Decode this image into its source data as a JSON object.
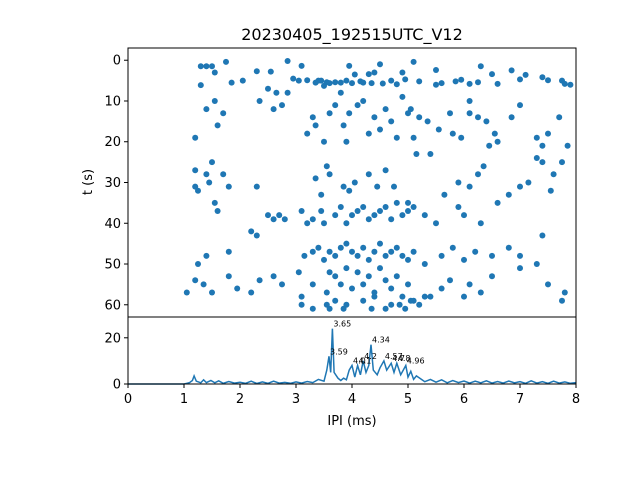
{
  "chart_data": [
    {
      "type": "scatter",
      "title": "20230405_192515UTC_V12",
      "xlabel": "",
      "ylabel": "t (s)",
      "xlim": [
        0,
        8
      ],
      "ylim": [
        63,
        -3
      ],
      "y_inverted": true,
      "yticks": [
        0,
        10,
        20,
        30,
        40,
        50,
        60
      ],
      "color": "#1f77b4",
      "points": [
        [
          1.3,
          1.5
        ],
        [
          1.4,
          1.5
        ],
        [
          1.5,
          1.5
        ],
        [
          1.55,
          3
        ],
        [
          1.75,
          0.4
        ],
        [
          1.85,
          5.5
        ],
        [
          1.3,
          6.1
        ],
        [
          2.05,
          5.0
        ],
        [
          2.3,
          2.7
        ],
        [
          2.55,
          2.8
        ],
        [
          2.85,
          0.2
        ],
        [
          2.95,
          4.5
        ],
        [
          3.05,
          5.0
        ],
        [
          3.1,
          1.4
        ],
        [
          3.2,
          4.9
        ],
        [
          3.35,
          5.5
        ],
        [
          3.4,
          5.0
        ],
        [
          3.45,
          5.0
        ],
        [
          3.5,
          6.3
        ],
        [
          3.55,
          5.4
        ],
        [
          3.6,
          5.6
        ],
        [
          3.7,
          5.4
        ],
        [
          3.8,
          5.5
        ],
        [
          3.9,
          5.0
        ],
        [
          3.95,
          1.4
        ],
        [
          4.0,
          5.6
        ],
        [
          4.05,
          3.5
        ],
        [
          4.15,
          5.2
        ],
        [
          4.2,
          5.5
        ],
        [
          4.3,
          3.4
        ],
        [
          4.35,
          5.6
        ],
        [
          4.4,
          3.0
        ],
        [
          4.5,
          1.0
        ],
        [
          4.55,
          5.7
        ],
        [
          4.7,
          5.0
        ],
        [
          4.8,
          5.9
        ],
        [
          4.9,
          3.0
        ],
        [
          4.95,
          4.7
        ],
        [
          5.1,
          0.4
        ],
        [
          5.2,
          5.2
        ],
        [
          5.5,
          2.4
        ],
        [
          5.5,
          6.0
        ],
        [
          5.6,
          5.6
        ],
        [
          5.85,
          5.2
        ],
        [
          5.95,
          4.8
        ],
        [
          6.1,
          5.8
        ],
        [
          6.25,
          5.4
        ],
        [
          6.3,
          1.5
        ],
        [
          6.5,
          3.4
        ],
        [
          6.6,
          5.8
        ],
        [
          6.85,
          2.5
        ],
        [
          7.0,
          4.7
        ],
        [
          7.1,
          3.6
        ],
        [
          7.4,
          4.2
        ],
        [
          7.5,
          4.9
        ],
        [
          7.75,
          5.0
        ],
        [
          7.8,
          5.8
        ],
        [
          7.9,
          6.0
        ],
        [
          1.2,
          19
        ],
        [
          1.4,
          12
        ],
        [
          1.55,
          10
        ],
        [
          1.6,
          16
        ],
        [
          1.7,
          13
        ],
        [
          2.35,
          10
        ],
        [
          2.5,
          7
        ],
        [
          2.6,
          12
        ],
        [
          2.65,
          8
        ],
        [
          2.75,
          11
        ],
        [
          2.85,
          8
        ],
        [
          3.2,
          18
        ],
        [
          3.3,
          14
        ],
        [
          3.35,
          16
        ],
        [
          3.5,
          20
        ],
        [
          3.6,
          13
        ],
        [
          3.7,
          11
        ],
        [
          3.8,
          8
        ],
        [
          3.85,
          16
        ],
        [
          3.9,
          20
        ],
        [
          3.95,
          13
        ],
        [
          4.1,
          11
        ],
        [
          4.2,
          10
        ],
        [
          4.3,
          18
        ],
        [
          4.4,
          14
        ],
        [
          4.5,
          17
        ],
        [
          4.6,
          12
        ],
        [
          4.7,
          15
        ],
        [
          4.8,
          19
        ],
        [
          4.9,
          9
        ],
        [
          5.0,
          13
        ],
        [
          5.05,
          12
        ],
        [
          5.1,
          19
        ],
        [
          5.2,
          14
        ],
        [
          5.35,
          15
        ],
        [
          5.55,
          17
        ],
        [
          5.75,
          13
        ],
        [
          5.8,
          18
        ],
        [
          5.95,
          19
        ],
        [
          6.1,
          13
        ],
        [
          6.1,
          10
        ],
        [
          6.25,
          14
        ],
        [
          6.4,
          15
        ],
        [
          6.45,
          21
        ],
        [
          6.55,
          18
        ],
        [
          6.6,
          20
        ],
        [
          6.85,
          14
        ],
        [
          7.0,
          11
        ],
        [
          7.3,
          19
        ],
        [
          7.4,
          21
        ],
        [
          7.5,
          18
        ],
        [
          7.7,
          14
        ],
        [
          7.85,
          21
        ],
        [
          1.2,
          27
        ],
        [
          1.2,
          31
        ],
        [
          1.25,
          32
        ],
        [
          1.4,
          28
        ],
        [
          1.45,
          30
        ],
        [
          1.5,
          25
        ],
        [
          1.55,
          35
        ],
        [
          1.6,
          37
        ],
        [
          1.7,
          28
        ],
        [
          1.8,
          31
        ],
        [
          2.3,
          31
        ],
        [
          3.35,
          29
        ],
        [
          3.45,
          33
        ],
        [
          3.55,
          26
        ],
        [
          3.6,
          28
        ],
        [
          3.85,
          31
        ],
        [
          3.95,
          32
        ],
        [
          4.05,
          30
        ],
        [
          4.3,
          28
        ],
        [
          4.45,
          31
        ],
        [
          4.6,
          27
        ],
        [
          4.75,
          31
        ],
        [
          5.0,
          35
        ],
        [
          5.15,
          23
        ],
        [
          5.4,
          23
        ],
        [
          5.65,
          33
        ],
        [
          5.9,
          30
        ],
        [
          6.1,
          31
        ],
        [
          6.25,
          28
        ],
        [
          6.35,
          26
        ],
        [
          6.6,
          35
        ],
        [
          6.8,
          33
        ],
        [
          7.0,
          31
        ],
        [
          7.15,
          30
        ],
        [
          7.3,
          24
        ],
        [
          7.4,
          25
        ],
        [
          7.55,
          32
        ],
        [
          7.6,
          28
        ],
        [
          7.75,
          25
        ],
        [
          2.2,
          42
        ],
        [
          2.3,
          43
        ],
        [
          2.5,
          38
        ],
        [
          2.6,
          39
        ],
        [
          2.7,
          38
        ],
        [
          2.8,
          39
        ],
        [
          3.1,
          37
        ],
        [
          3.2,
          40
        ],
        [
          3.3,
          39
        ],
        [
          3.45,
          37
        ],
        [
          3.5,
          40
        ],
        [
          3.7,
          38
        ],
        [
          3.8,
          36
        ],
        [
          3.9,
          40
        ],
        [
          4.0,
          38
        ],
        [
          4.1,
          37
        ],
        [
          4.2,
          36
        ],
        [
          4.3,
          39
        ],
        [
          4.4,
          38
        ],
        [
          4.5,
          37
        ],
        [
          4.6,
          36
        ],
        [
          4.7,
          39
        ],
        [
          4.8,
          35
        ],
        [
          4.9,
          38
        ],
        [
          5.0,
          37
        ],
        [
          5.1,
          36
        ],
        [
          5.3,
          38
        ],
        [
          5.5,
          40
        ],
        [
          5.9,
          36
        ],
        [
          6.0,
          38
        ],
        [
          6.3,
          40
        ],
        [
          7.4,
          43
        ],
        [
          1.4,
          48
        ],
        [
          1.8,
          47
        ],
        [
          3.15,
          48
        ],
        [
          3.3,
          47
        ],
        [
          3.4,
          46
        ],
        [
          3.5,
          49
        ],
        [
          3.6,
          47
        ],
        [
          3.7,
          48
        ],
        [
          3.8,
          46
        ],
        [
          3.9,
          45
        ],
        [
          4.0,
          47
        ],
        [
          4.1,
          48
        ],
        [
          4.2,
          46
        ],
        [
          4.3,
          49
        ],
        [
          4.4,
          47
        ],
        [
          4.5,
          45
        ],
        [
          4.6,
          48
        ],
        [
          4.7,
          47
        ],
        [
          4.8,
          46
        ],
        [
          4.9,
          48
        ],
        [
          5.0,
          49
        ],
        [
          5.1,
          47
        ],
        [
          5.3,
          50
        ],
        [
          5.6,
          48
        ],
        [
          5.8,
          46
        ],
        [
          6.0,
          49
        ],
        [
          6.2,
          47
        ],
        [
          6.5,
          48
        ],
        [
          6.8,
          46
        ],
        [
          7.0,
          48
        ],
        [
          1.05,
          57
        ],
        [
          1.2,
          54
        ],
        [
          1.25,
          50
        ],
        [
          1.35,
          55
        ],
        [
          1.5,
          57
        ],
        [
          1.8,
          53
        ],
        [
          1.95,
          56
        ],
        [
          2.2,
          57
        ],
        [
          2.35,
          54
        ],
        [
          2.6,
          53
        ],
        [
          2.75,
          55
        ],
        [
          3.05,
          52
        ],
        [
          3.1,
          58
        ],
        [
          3.3,
          55
        ],
        [
          3.55,
          57
        ],
        [
          3.6,
          52
        ],
        [
          3.7,
          53
        ],
        [
          3.8,
          55
        ],
        [
          3.9,
          51
        ],
        [
          4.0,
          56
        ],
        [
          4.1,
          52
        ],
        [
          4.2,
          55
        ],
        [
          4.3,
          53
        ],
        [
          4.4,
          57
        ],
        [
          4.5,
          51
        ],
        [
          4.6,
          54
        ],
        [
          4.7,
          56
        ],
        [
          4.8,
          53
        ],
        [
          4.9,
          58
        ],
        [
          5.0,
          55
        ],
        [
          5.1,
          59
        ],
        [
          5.3,
          58
        ],
        [
          5.6,
          56
        ],
        [
          5.75,
          54
        ],
        [
          6.0,
          58
        ],
        [
          6.1,
          55
        ],
        [
          6.3,
          57
        ],
        [
          6.5,
          53
        ],
        [
          7.0,
          51
        ],
        [
          7.3,
          50
        ],
        [
          7.5,
          55
        ],
        [
          7.75,
          59
        ],
        [
          7.8,
          57
        ],
        [
          3.55,
          60
        ],
        [
          3.7,
          59
        ],
        [
          3.9,
          60
        ],
        [
          4.2,
          59
        ],
        [
          4.4,
          58
        ],
        [
          4.7,
          60
        ],
        [
          4.85,
          60
        ],
        [
          5.05,
          59
        ],
        [
          5.4,
          58
        ],
        [
          3.1,
          60
        ],
        [
          3.3,
          61
        ],
        [
          3.6,
          61
        ],
        [
          3.85,
          61
        ],
        [
          4.35,
          61
        ],
        [
          4.6,
          61
        ],
        [
          4.95,
          61
        ],
        [
          5.2,
          60
        ]
      ]
    },
    {
      "type": "line",
      "xlabel": "IPI (ms)",
      "ylabel": "",
      "xlim": [
        0,
        8
      ],
      "ylim": [
        0,
        29
      ],
      "xticks": [
        0,
        1,
        2,
        3,
        4,
        5,
        6,
        7,
        8
      ],
      "yticks": [
        0,
        20
      ],
      "color": "#1f77b4",
      "peaks": [
        {
          "x": 3.65,
          "y": 24,
          "label": "3.65"
        },
        {
          "x": 3.59,
          "y": 12,
          "label": "3.59"
        },
        {
          "x": 4.34,
          "y": 17,
          "label": "4.34"
        },
        {
          "x": 4.2,
          "y": 10,
          "label": "4.2"
        },
        {
          "x": 4.0,
          "y": 8,
          "label": "4.0"
        },
        {
          "x": 4.1,
          "y": 8,
          "label": "4.1"
        },
        {
          "x": 4.57,
          "y": 10,
          "label": "4.57"
        },
        {
          "x": 4.7,
          "y": 9,
          "label": "4.7"
        },
        {
          "x": 4.8,
          "y": 9,
          "label": "4.8"
        },
        {
          "x": 4.96,
          "y": 8,
          "label": "4.96"
        }
      ],
      "peak_label_text": [
        "3.65",
        "3.59",
        "4.34",
        "4.2",
        "4.0",
        "4.1",
        "4.57",
        "4.7",
        "4.8",
        "4.96"
      ],
      "line": [
        [
          0,
          0
        ],
        [
          1.0,
          0
        ],
        [
          1.05,
          0.3
        ],
        [
          1.1,
          0.6
        ],
        [
          1.15,
          1.5
        ],
        [
          1.18,
          3.5
        ],
        [
          1.22,
          1.2
        ],
        [
          1.3,
          0.5
        ],
        [
          1.35,
          1.8
        ],
        [
          1.4,
          0.6
        ],
        [
          1.48,
          1.5
        ],
        [
          1.55,
          0.5
        ],
        [
          1.62,
          1.4
        ],
        [
          1.7,
          0.3
        ],
        [
          1.8,
          1.1
        ],
        [
          1.9,
          0.4
        ],
        [
          2.0,
          0.8
        ],
        [
          2.1,
          0.3
        ],
        [
          2.2,
          1.2
        ],
        [
          2.3,
          0.2
        ],
        [
          2.4,
          0.9
        ],
        [
          2.5,
          0.3
        ],
        [
          2.6,
          1.2
        ],
        [
          2.7,
          0.4
        ],
        [
          2.8,
          0.7
        ],
        [
          2.9,
          0.3
        ],
        [
          3.0,
          0.9
        ],
        [
          3.1,
          0.4
        ],
        [
          3.2,
          1.1
        ],
        [
          3.3,
          0.6
        ],
        [
          3.4,
          2.0
        ],
        [
          3.5,
          1.2
        ],
        [
          3.55,
          6
        ],
        [
          3.59,
          12
        ],
        [
          3.62,
          5
        ],
        [
          3.65,
          24
        ],
        [
          3.68,
          5
        ],
        [
          3.75,
          2.5
        ],
        [
          3.8,
          1.5
        ],
        [
          3.85,
          2.5
        ],
        [
          3.9,
          1.8
        ],
        [
          3.95,
          6
        ],
        [
          4.0,
          8
        ],
        [
          4.05,
          3
        ],
        [
          4.1,
          8
        ],
        [
          4.15,
          4
        ],
        [
          4.2,
          10
        ],
        [
          4.25,
          5
        ],
        [
          4.3,
          8
        ],
        [
          4.34,
          17
        ],
        [
          4.38,
          6
        ],
        [
          4.45,
          4
        ],
        [
          4.5,
          7
        ],
        [
          4.57,
          10
        ],
        [
          4.62,
          6
        ],
        [
          4.7,
          9
        ],
        [
          4.75,
          5
        ],
        [
          4.8,
          9
        ],
        [
          4.87,
          4
        ],
        [
          4.96,
          8
        ],
        [
          5.0,
          3
        ],
        [
          5.05,
          5.5
        ],
        [
          5.1,
          2
        ],
        [
          5.15,
          3.5
        ],
        [
          5.25,
          1.8
        ],
        [
          5.3,
          1
        ],
        [
          5.4,
          2
        ],
        [
          5.5,
          0.8
        ],
        [
          5.6,
          1.8
        ],
        [
          5.7,
          0.5
        ],
        [
          5.8,
          1.5
        ],
        [
          5.9,
          0.6
        ],
        [
          6.0,
          1.3
        ],
        [
          6.1,
          0.4
        ],
        [
          6.2,
          1.2
        ],
        [
          6.3,
          0.5
        ],
        [
          6.4,
          1.4
        ],
        [
          6.5,
          0.4
        ],
        [
          6.6,
          1.1
        ],
        [
          6.7,
          0.4
        ],
        [
          6.8,
          1.3
        ],
        [
          6.9,
          0.5
        ],
        [
          7.0,
          1.0
        ],
        [
          7.1,
          0.3
        ],
        [
          7.2,
          1.4
        ],
        [
          7.3,
          0.4
        ],
        [
          7.4,
          1.0
        ],
        [
          7.5,
          0.3
        ],
        [
          7.6,
          1.2
        ],
        [
          7.7,
          0.4
        ],
        [
          7.8,
          0.9
        ],
        [
          7.9,
          0.3
        ],
        [
          8.0,
          0.6
        ]
      ]
    }
  ]
}
